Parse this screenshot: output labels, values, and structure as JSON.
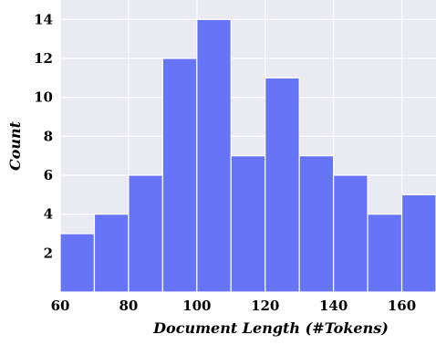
{
  "chart_data": {
    "type": "bar",
    "bin_edges": [
      60,
      70,
      80,
      90,
      100,
      110,
      120,
      130,
      140,
      150,
      160,
      170
    ],
    "values": [
      3,
      4,
      6,
      12,
      14,
      7,
      11,
      7,
      6,
      4,
      5
    ],
    "xlabel": "Document Length (#Tokens)",
    "ylabel": "Count",
    "x_ticks": [
      "60",
      "80",
      "100",
      "120",
      "140",
      "160"
    ],
    "y_ticks": [
      "2",
      "4",
      "6",
      "8",
      "10",
      "12",
      "14"
    ],
    "xlim": [
      60,
      170
    ],
    "ylim": [
      0,
      15
    ],
    "grid": true,
    "colors": {
      "bar": "#6674f7",
      "plot_background": "#eaeaf2",
      "grid": "#ffffff"
    }
  }
}
